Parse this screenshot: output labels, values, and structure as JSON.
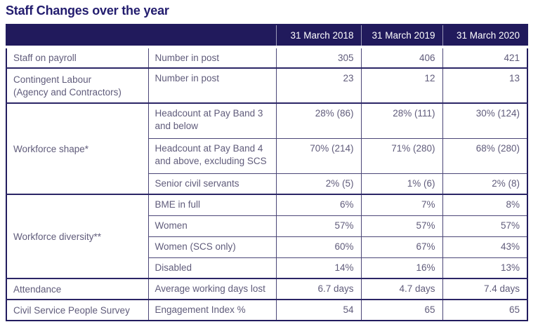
{
  "page_title": "Staff Changes over the year",
  "colors": {
    "header_bg": "#211a5c",
    "header_text": "#ffffff",
    "title_text": "#221c6e",
    "body_text": "#605c7b",
    "border_inner": "#4b4677",
    "border_outer": "#221c5e"
  },
  "table": {
    "year_headers": [
      "31 March 2018",
      "31 March 2019",
      "31 March 2020"
    ],
    "groups": [
      {
        "label": "Staff on payroll",
        "rows": [
          {
            "metric": "Number in post",
            "values": [
              "305",
              "406",
              "421"
            ]
          }
        ]
      },
      {
        "label": "Contingent Labour\n(Agency and Contractors)",
        "rows": [
          {
            "metric": "Number in post",
            "values": [
              "23",
              "12",
              "13"
            ]
          }
        ]
      },
      {
        "label": "Workforce shape*",
        "rows": [
          {
            "metric": "Headcount at Pay Band 3\nand below",
            "values": [
              "28% (86)",
              "28% (111)",
              "30% (124)"
            ]
          },
          {
            "metric": "Headcount at Pay Band 4\nand above, excluding SCS",
            "values": [
              "70% (214)",
              "71% (280)",
              "68% (280)"
            ]
          },
          {
            "metric": "Senior civil servants",
            "values": [
              "2% (5)",
              "1% (6)",
              "2% (8)"
            ]
          }
        ]
      },
      {
        "label": "Workforce diversity**",
        "rows": [
          {
            "metric": "BME in full",
            "values": [
              "6%",
              "7%",
              "8%"
            ]
          },
          {
            "metric": "Women",
            "values": [
              "57%",
              "57%",
              "57%"
            ]
          },
          {
            "metric": "Women (SCS only)",
            "values": [
              "60%",
              "67%",
              "43%"
            ]
          },
          {
            "metric": "Disabled",
            "values": [
              "14%",
              "16%",
              "13%"
            ]
          }
        ]
      },
      {
        "label": "Attendance",
        "rows": [
          {
            "metric": "Average working days lost",
            "values": [
              "6.7 days",
              "4.7 days",
              "7.4 days"
            ]
          }
        ]
      },
      {
        "label": "Civil Service People Survey",
        "rows": [
          {
            "metric": "Engagement Index %",
            "values": [
              "54",
              "65",
              "65"
            ]
          }
        ]
      }
    ]
  }
}
